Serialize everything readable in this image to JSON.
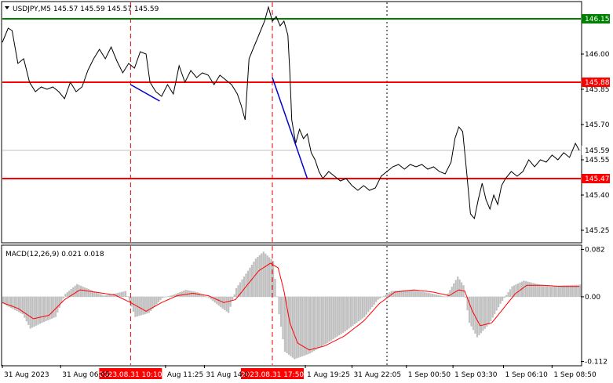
{
  "chart_data": {
    "type": "line",
    "symbol": "USDJPY",
    "timeframe": "M5",
    "header_label": "USDJPY,M5  145.57 145.59 145.57 145.59",
    "ohlc": {
      "open": 145.57,
      "high": 145.59,
      "low": 145.57,
      "close": 145.59
    },
    "price_axis": {
      "ylim": [
        145.2,
        146.22
      ],
      "ticks": [
        146.0,
        145.85,
        145.7,
        145.55,
        145.4,
        145.25
      ]
    },
    "levels": [
      {
        "value": 146.15,
        "label": "146.15",
        "color": "#008000",
        "kind": "target"
      },
      {
        "value": 145.88,
        "label": "145.88",
        "color": "#ff0000",
        "kind": "level"
      },
      {
        "value": 145.47,
        "label": "145.47",
        "color": "#ff0000",
        "kind": "level"
      }
    ],
    "current_price": {
      "value": 145.59,
      "label": "145.59"
    },
    "price_series": [
      {
        "t": 0,
        "p": 146.05
      },
      {
        "t": 3,
        "p": 146.11
      },
      {
        "t": 5,
        "p": 146.1
      },
      {
        "t": 8,
        "p": 145.96
      },
      {
        "t": 11,
        "p": 145.98
      },
      {
        "t": 14,
        "p": 145.88
      },
      {
        "t": 17,
        "p": 145.84
      },
      {
        "t": 20,
        "p": 145.86
      },
      {
        "t": 23,
        "p": 145.85
      },
      {
        "t": 26,
        "p": 145.86
      },
      {
        "t": 29,
        "p": 145.84
      },
      {
        "t": 32,
        "p": 145.81
      },
      {
        "t": 35,
        "p": 145.88
      },
      {
        "t": 38,
        "p": 145.84
      },
      {
        "t": 41,
        "p": 145.86
      },
      {
        "t": 44,
        "p": 145.93
      },
      {
        "t": 47,
        "p": 145.98
      },
      {
        "t": 50,
        "p": 146.02
      },
      {
        "t": 53,
        "p": 145.98
      },
      {
        "t": 56,
        "p": 146.03
      },
      {
        "t": 59,
        "p": 145.97
      },
      {
        "t": 62,
        "p": 145.92
      },
      {
        "t": 65,
        "p": 145.96
      },
      {
        "t": 68,
        "p": 145.94
      },
      {
        "t": 71,
        "p": 146.01
      },
      {
        "t": 74,
        "p": 146.0
      },
      {
        "t": 76,
        "p": 145.88
      },
      {
        "t": 79,
        "p": 145.84
      },
      {
        "t": 82,
        "p": 145.82
      },
      {
        "t": 85,
        "p": 145.87
      },
      {
        "t": 88,
        "p": 145.83
      },
      {
        "t": 91,
        "p": 145.95
      },
      {
        "t": 94,
        "p": 145.88
      },
      {
        "t": 97,
        "p": 145.93
      },
      {
        "t": 100,
        "p": 145.9
      },
      {
        "t": 103,
        "p": 145.92
      },
      {
        "t": 106,
        "p": 145.91
      },
      {
        "t": 109,
        "p": 145.87
      },
      {
        "t": 112,
        "p": 145.91
      },
      {
        "t": 115,
        "p": 145.89
      },
      {
        "t": 118,
        "p": 145.87
      },
      {
        "t": 121,
        "p": 145.83
      },
      {
        "t": 123,
        "p": 145.78
      },
      {
        "t": 125,
        "p": 145.72
      },
      {
        "t": 127,
        "p": 145.98
      },
      {
        "t": 129,
        "p": 146.02
      },
      {
        "t": 131,
        "p": 146.06
      },
      {
        "t": 133,
        "p": 146.1
      },
      {
        "t": 135,
        "p": 146.14
      },
      {
        "t": 137,
        "p": 146.2
      },
      {
        "t": 139,
        "p": 146.14
      },
      {
        "t": 141,
        "p": 146.16
      },
      {
        "t": 143,
        "p": 146.12
      },
      {
        "t": 145,
        "p": 146.14
      },
      {
        "t": 147,
        "p": 146.08
      },
      {
        "t": 148,
        "p": 145.92
      },
      {
        "t": 149,
        "p": 145.72
      },
      {
        "t": 151,
        "p": 145.62
      },
      {
        "t": 153,
        "p": 145.68
      },
      {
        "t": 155,
        "p": 145.64
      },
      {
        "t": 157,
        "p": 145.66
      },
      {
        "t": 159,
        "p": 145.58
      },
      {
        "t": 161,
        "p": 145.55
      },
      {
        "t": 163,
        "p": 145.5
      },
      {
        "t": 165,
        "p": 145.47
      },
      {
        "t": 168,
        "p": 145.5
      },
      {
        "t": 171,
        "p": 145.48
      },
      {
        "t": 174,
        "p": 145.46
      },
      {
        "t": 177,
        "p": 145.47
      },
      {
        "t": 180,
        "p": 145.44
      },
      {
        "t": 183,
        "p": 145.42
      },
      {
        "t": 186,
        "p": 145.44
      },
      {
        "t": 189,
        "p": 145.42
      },
      {
        "t": 192,
        "p": 145.43
      },
      {
        "t": 195,
        "p": 145.48
      },
      {
        "t": 198,
        "p": 145.5
      },
      {
        "t": 201,
        "p": 145.52
      },
      {
        "t": 204,
        "p": 145.53
      },
      {
        "t": 207,
        "p": 145.51
      },
      {
        "t": 210,
        "p": 145.53
      },
      {
        "t": 213,
        "p": 145.52
      },
      {
        "t": 216,
        "p": 145.53
      },
      {
        "t": 219,
        "p": 145.51
      },
      {
        "t": 222,
        "p": 145.52
      },
      {
        "t": 225,
        "p": 145.5
      },
      {
        "t": 228,
        "p": 145.49
      },
      {
        "t": 231,
        "p": 145.54
      },
      {
        "t": 233,
        "p": 145.64
      },
      {
        "t": 235,
        "p": 145.69
      },
      {
        "t": 237,
        "p": 145.67
      },
      {
        "t": 239,
        "p": 145.5
      },
      {
        "t": 241,
        "p": 145.32
      },
      {
        "t": 243,
        "p": 145.3
      },
      {
        "t": 245,
        "p": 145.38
      },
      {
        "t": 247,
        "p": 145.45
      },
      {
        "t": 249,
        "p": 145.38
      },
      {
        "t": 251,
        "p": 145.34
      },
      {
        "t": 253,
        "p": 145.4
      },
      {
        "t": 255,
        "p": 145.36
      },
      {
        "t": 257,
        "p": 145.44
      },
      {
        "t": 259,
        "p": 145.47
      },
      {
        "t": 262,
        "p": 145.5
      },
      {
        "t": 265,
        "p": 145.48
      },
      {
        "t": 268,
        "p": 145.5
      },
      {
        "t": 271,
        "p": 145.55
      },
      {
        "t": 274,
        "p": 145.52
      },
      {
        "t": 277,
        "p": 145.55
      },
      {
        "t": 280,
        "p": 145.54
      },
      {
        "t": 283,
        "p": 145.57
      },
      {
        "t": 286,
        "p": 145.55
      },
      {
        "t": 289,
        "p": 145.58
      },
      {
        "t": 292,
        "p": 145.56
      },
      {
        "t": 295,
        "p": 145.62
      },
      {
        "t": 297,
        "p": 145.59
      }
    ],
    "trend_lines": [
      {
        "points": [
          {
            "t": 66,
            "p": 145.87
          },
          {
            "t": 81,
            "p": 145.8
          }
        ],
        "color": "#0000cc"
      },
      {
        "points": [
          {
            "t": 139,
            "p": 145.9
          },
          {
            "t": 157,
            "p": 145.47
          }
        ],
        "color": "#0000cc"
      }
    ],
    "marker_lines": [
      {
        "t": 66,
        "label": "2023.08.31 10:10",
        "color": "#dd0000"
      },
      {
        "t": 139,
        "label": "2023.08.31 17:50",
        "color": "#dd0000"
      }
    ],
    "session_line": {
      "t": 198,
      "color": "#000000"
    },
    "x_tick_labels": [
      {
        "t": 0,
        "label": "31 Aug 2023"
      },
      {
        "t": 30,
        "label": "31 Aug 06:05"
      },
      {
        "t": 84,
        "label": "Aug 11:25"
      },
      {
        "t": 104,
        "label": "31 Aug 14:0"
      },
      {
        "t": 156,
        "label": "1 Aug 19:25"
      },
      {
        "t": 180,
        "label": "31 Aug 22:05"
      },
      {
        "t": 208,
        "label": "1 Sep 00:50"
      },
      {
        "t": 232,
        "label": "1 Sep 03:30"
      },
      {
        "t": 258,
        "label": "1 Sep 06:10"
      },
      {
        "t": 283,
        "label": "1 Sep 08:50"
      }
    ],
    "macd": {
      "label": "MACD(12,26,9) 0.021 0.018",
      "params": "12,26,9",
      "value": 0.021,
      "signal_value": 0.018,
      "ylim": [
        -0.118,
        0.088
      ],
      "ticks": [
        {
          "value": 0.082,
          "label": "0.082"
        },
        {
          "value": 0.0,
          "label": "0.00"
        },
        {
          "value": -0.112,
          "label": "-0.112"
        }
      ],
      "histogram_keys": [
        {
          "t": 0,
          "v": -0.012
        },
        {
          "t": 10,
          "v": -0.03
        },
        {
          "t": 14,
          "v": -0.055
        },
        {
          "t": 20,
          "v": -0.045
        },
        {
          "t": 27,
          "v": -0.035
        },
        {
          "t": 32,
          "v": 0.005
        },
        {
          "t": 38,
          "v": 0.022
        },
        {
          "t": 45,
          "v": 0.012
        },
        {
          "t": 52,
          "v": 0.002
        },
        {
          "t": 58,
          "v": 0.006
        },
        {
          "t": 63,
          "v": 0.01
        },
        {
          "t": 68,
          "v": -0.035
        },
        {
          "t": 75,
          "v": -0.028
        },
        {
          "t": 82,
          "v": -0.002
        },
        {
          "t": 88,
          "v": 0.004
        },
        {
          "t": 94,
          "v": 0.012
        },
        {
          "t": 100,
          "v": 0.008
        },
        {
          "t": 106,
          "v": -0.002
        },
        {
          "t": 112,
          "v": -0.018
        },
        {
          "t": 116,
          "v": -0.028
        },
        {
          "t": 120,
          "v": 0.015
        },
        {
          "t": 126,
          "v": 0.045
        },
        {
          "t": 130,
          "v": 0.066
        },
        {
          "t": 134,
          "v": 0.078
        },
        {
          "t": 139,
          "v": 0.062
        },
        {
          "t": 142,
          "v": -0.03
        },
        {
          "t": 145,
          "v": -0.095
        },
        {
          "t": 150,
          "v": -0.108
        },
        {
          "t": 158,
          "v": -0.098
        },
        {
          "t": 166,
          "v": -0.082
        },
        {
          "t": 176,
          "v": -0.06
        },
        {
          "t": 186,
          "v": -0.035
        },
        {
          "t": 193,
          "v": -0.005
        },
        {
          "t": 200,
          "v": 0.01
        },
        {
          "t": 210,
          "v": 0.012
        },
        {
          "t": 220,
          "v": 0.006
        },
        {
          "t": 228,
          "v": 0.0
        },
        {
          "t": 234,
          "v": 0.035
        },
        {
          "t": 237,
          "v": 0.02
        },
        {
          "t": 240,
          "v": -0.045
        },
        {
          "t": 244,
          "v": -0.07
        },
        {
          "t": 250,
          "v": -0.048
        },
        {
          "t": 256,
          "v": -0.012
        },
        {
          "t": 262,
          "v": 0.018
        },
        {
          "t": 268,
          "v": 0.028
        },
        {
          "t": 275,
          "v": 0.022
        },
        {
          "t": 282,
          "v": 0.018
        },
        {
          "t": 290,
          "v": 0.02
        },
        {
          "t": 297,
          "v": 0.021
        }
      ],
      "signal_keys": [
        {
          "t": 0,
          "v": -0.01
        },
        {
          "t": 8,
          "v": -0.02
        },
        {
          "t": 16,
          "v": -0.038
        },
        {
          "t": 24,
          "v": -0.032
        },
        {
          "t": 32,
          "v": -0.005
        },
        {
          "t": 40,
          "v": 0.012
        },
        {
          "t": 48,
          "v": 0.008
        },
        {
          "t": 58,
          "v": 0.003
        },
        {
          "t": 66,
          "v": -0.01
        },
        {
          "t": 74,
          "v": -0.025
        },
        {
          "t": 82,
          "v": -0.01
        },
        {
          "t": 90,
          "v": 0.002
        },
        {
          "t": 98,
          "v": 0.006
        },
        {
          "t": 106,
          "v": 0.002
        },
        {
          "t": 114,
          "v": -0.01
        },
        {
          "t": 120,
          "v": -0.005
        },
        {
          "t": 126,
          "v": 0.02
        },
        {
          "t": 132,
          "v": 0.045
        },
        {
          "t": 138,
          "v": 0.058
        },
        {
          "t": 142,
          "v": 0.05
        },
        {
          "t": 145,
          "v": 0.01
        },
        {
          "t": 148,
          "v": -0.045
        },
        {
          "t": 152,
          "v": -0.08
        },
        {
          "t": 158,
          "v": -0.092
        },
        {
          "t": 166,
          "v": -0.085
        },
        {
          "t": 176,
          "v": -0.068
        },
        {
          "t": 186,
          "v": -0.042
        },
        {
          "t": 194,
          "v": -0.012
        },
        {
          "t": 202,
          "v": 0.008
        },
        {
          "t": 212,
          "v": 0.012
        },
        {
          "t": 222,
          "v": 0.008
        },
        {
          "t": 230,
          "v": 0.002
        },
        {
          "t": 235,
          "v": 0.012
        },
        {
          "t": 238,
          "v": 0.01
        },
        {
          "t": 242,
          "v": -0.025
        },
        {
          "t": 246,
          "v": -0.05
        },
        {
          "t": 252,
          "v": -0.045
        },
        {
          "t": 258,
          "v": -0.02
        },
        {
          "t": 264,
          "v": 0.005
        },
        {
          "t": 270,
          "v": 0.02
        },
        {
          "t": 278,
          "v": 0.02
        },
        {
          "t": 288,
          "v": 0.018
        },
        {
          "t": 297,
          "v": 0.018
        }
      ]
    }
  }
}
